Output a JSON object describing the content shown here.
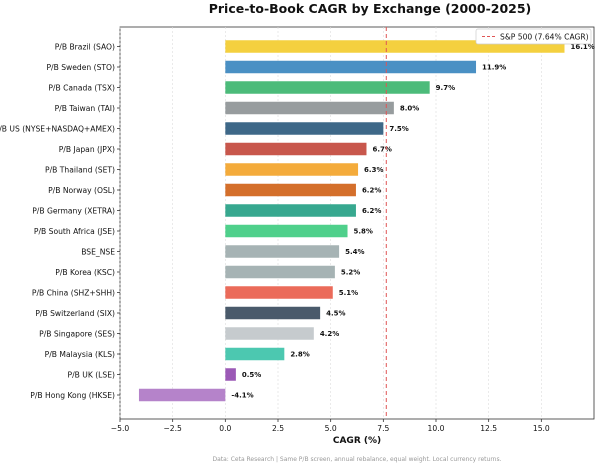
{
  "chart_data": {
    "type": "bar",
    "orientation": "horizontal",
    "title": "Price-to-Book CAGR by Exchange (2000-2025)",
    "xlabel": "CAGR (%)",
    "ylabel": "",
    "xlim": [
      -5.0,
      17.5
    ],
    "xticks": [
      "−5.0",
      "−2.5",
      "0.0",
      "2.5",
      "5.0",
      "7.5",
      "10.0",
      "12.5",
      "15.0"
    ],
    "xtick_values": [
      -5.0,
      -2.5,
      0.0,
      2.5,
      5.0,
      7.5,
      10.0,
      12.5,
      15.0
    ],
    "grid": "vertical",
    "categories": [
      "P/B Brazil (SAO)",
      "P/B Sweden (STO)",
      "P/B Canada (TSX)",
      "P/B Taiwan (TAI)",
      "P/B US (NYSE+NASDAQ+AMEX)",
      "P/B Japan (JPX)",
      "P/B Thailand (SET)",
      "P/B Norway (OSL)",
      "P/B Germany (XETRA)",
      "P/B South Africa (JSE)",
      "BSE_NSE",
      "P/B Korea (KSC)",
      "P/B China (SHZ+SHH)",
      "P/B Switzerland (SIX)",
      "P/B Singapore (SES)",
      "P/B Malaysia (KLS)",
      "P/B UK (LSE)",
      "P/B Hong Kong (HKSE)"
    ],
    "values": [
      16.1,
      11.9,
      9.7,
      8.0,
      7.5,
      6.7,
      6.3,
      6.2,
      6.2,
      5.8,
      5.4,
      5.2,
      5.1,
      4.5,
      4.2,
      2.8,
      0.5,
      -4.1
    ],
    "value_labels": [
      "16.1%",
      "11.9%",
      "9.7%",
      "8.0%",
      "7.5%",
      "6.7%",
      "6.3%",
      "6.2%",
      "6.2%",
      "5.8%",
      "5.4%",
      "5.2%",
      "5.1%",
      "4.5%",
      "4.2%",
      "2.8%",
      "0.5%",
      "-4.1%"
    ],
    "colors": [
      "#f4d03f",
      "#4a90c4",
      "#4cbb7a",
      "#979c9e",
      "#3e6888",
      "#c8574c",
      "#f4ab3b",
      "#d46f2b",
      "#37a88f",
      "#4fd08b",
      "#a6b3b4",
      "#a6b3b4",
      "#eb6b5a",
      "#4a5a6b",
      "#c6cbce",
      "#4cc8b0",
      "#9b59b6",
      "#b583ca"
    ],
    "reference_line": {
      "value": 7.64,
      "label": "S&P 500 (7.64% CAGR)",
      "color": "#e05555",
      "style": "dashed"
    },
    "legend": {
      "placement": "top-right",
      "entries": [
        "S&P 500 (7.64% CAGR)"
      ]
    },
    "footnote": "Data: Ceta Research | Same P/B screen, annual rebalance, equal weight. Local currency returns."
  }
}
